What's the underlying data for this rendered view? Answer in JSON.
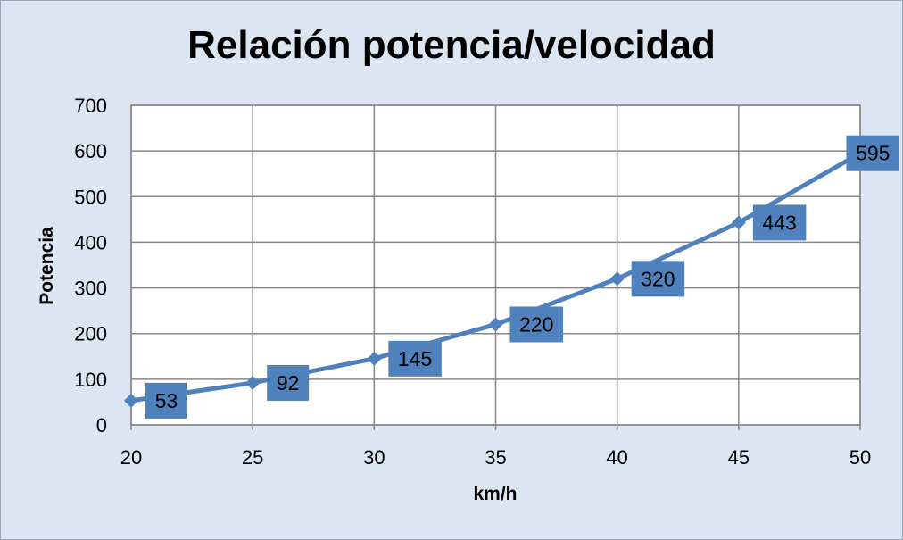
{
  "chart_data": {
    "type": "line",
    "title": "Relación potencia/velocidad",
    "xlabel": "km/h",
    "ylabel": "Potencia",
    "x": [
      20,
      25,
      30,
      35,
      40,
      45,
      50
    ],
    "series": [
      {
        "values": [
          53,
          92,
          145,
          220,
          320,
          443,
          595
        ]
      }
    ],
    "xlim": [
      20,
      50
    ],
    "ylim": [
      0,
      700
    ],
    "xticks": [
      "20",
      "25",
      "30",
      "35",
      "40",
      "45",
      "50"
    ],
    "yticks": [
      "0",
      "100",
      "200",
      "300",
      "400",
      "500",
      "600",
      "700"
    ],
    "data_labels": [
      "53",
      "92",
      "145",
      "220",
      "320",
      "443",
      "595"
    ],
    "grid": true,
    "legend": "none",
    "colors": {
      "series": "#4f81bd",
      "label_box": "#4f81bd",
      "chart_background": "#dce6f2",
      "plot_background": "#ffffff",
      "grid": "#868686"
    }
  }
}
